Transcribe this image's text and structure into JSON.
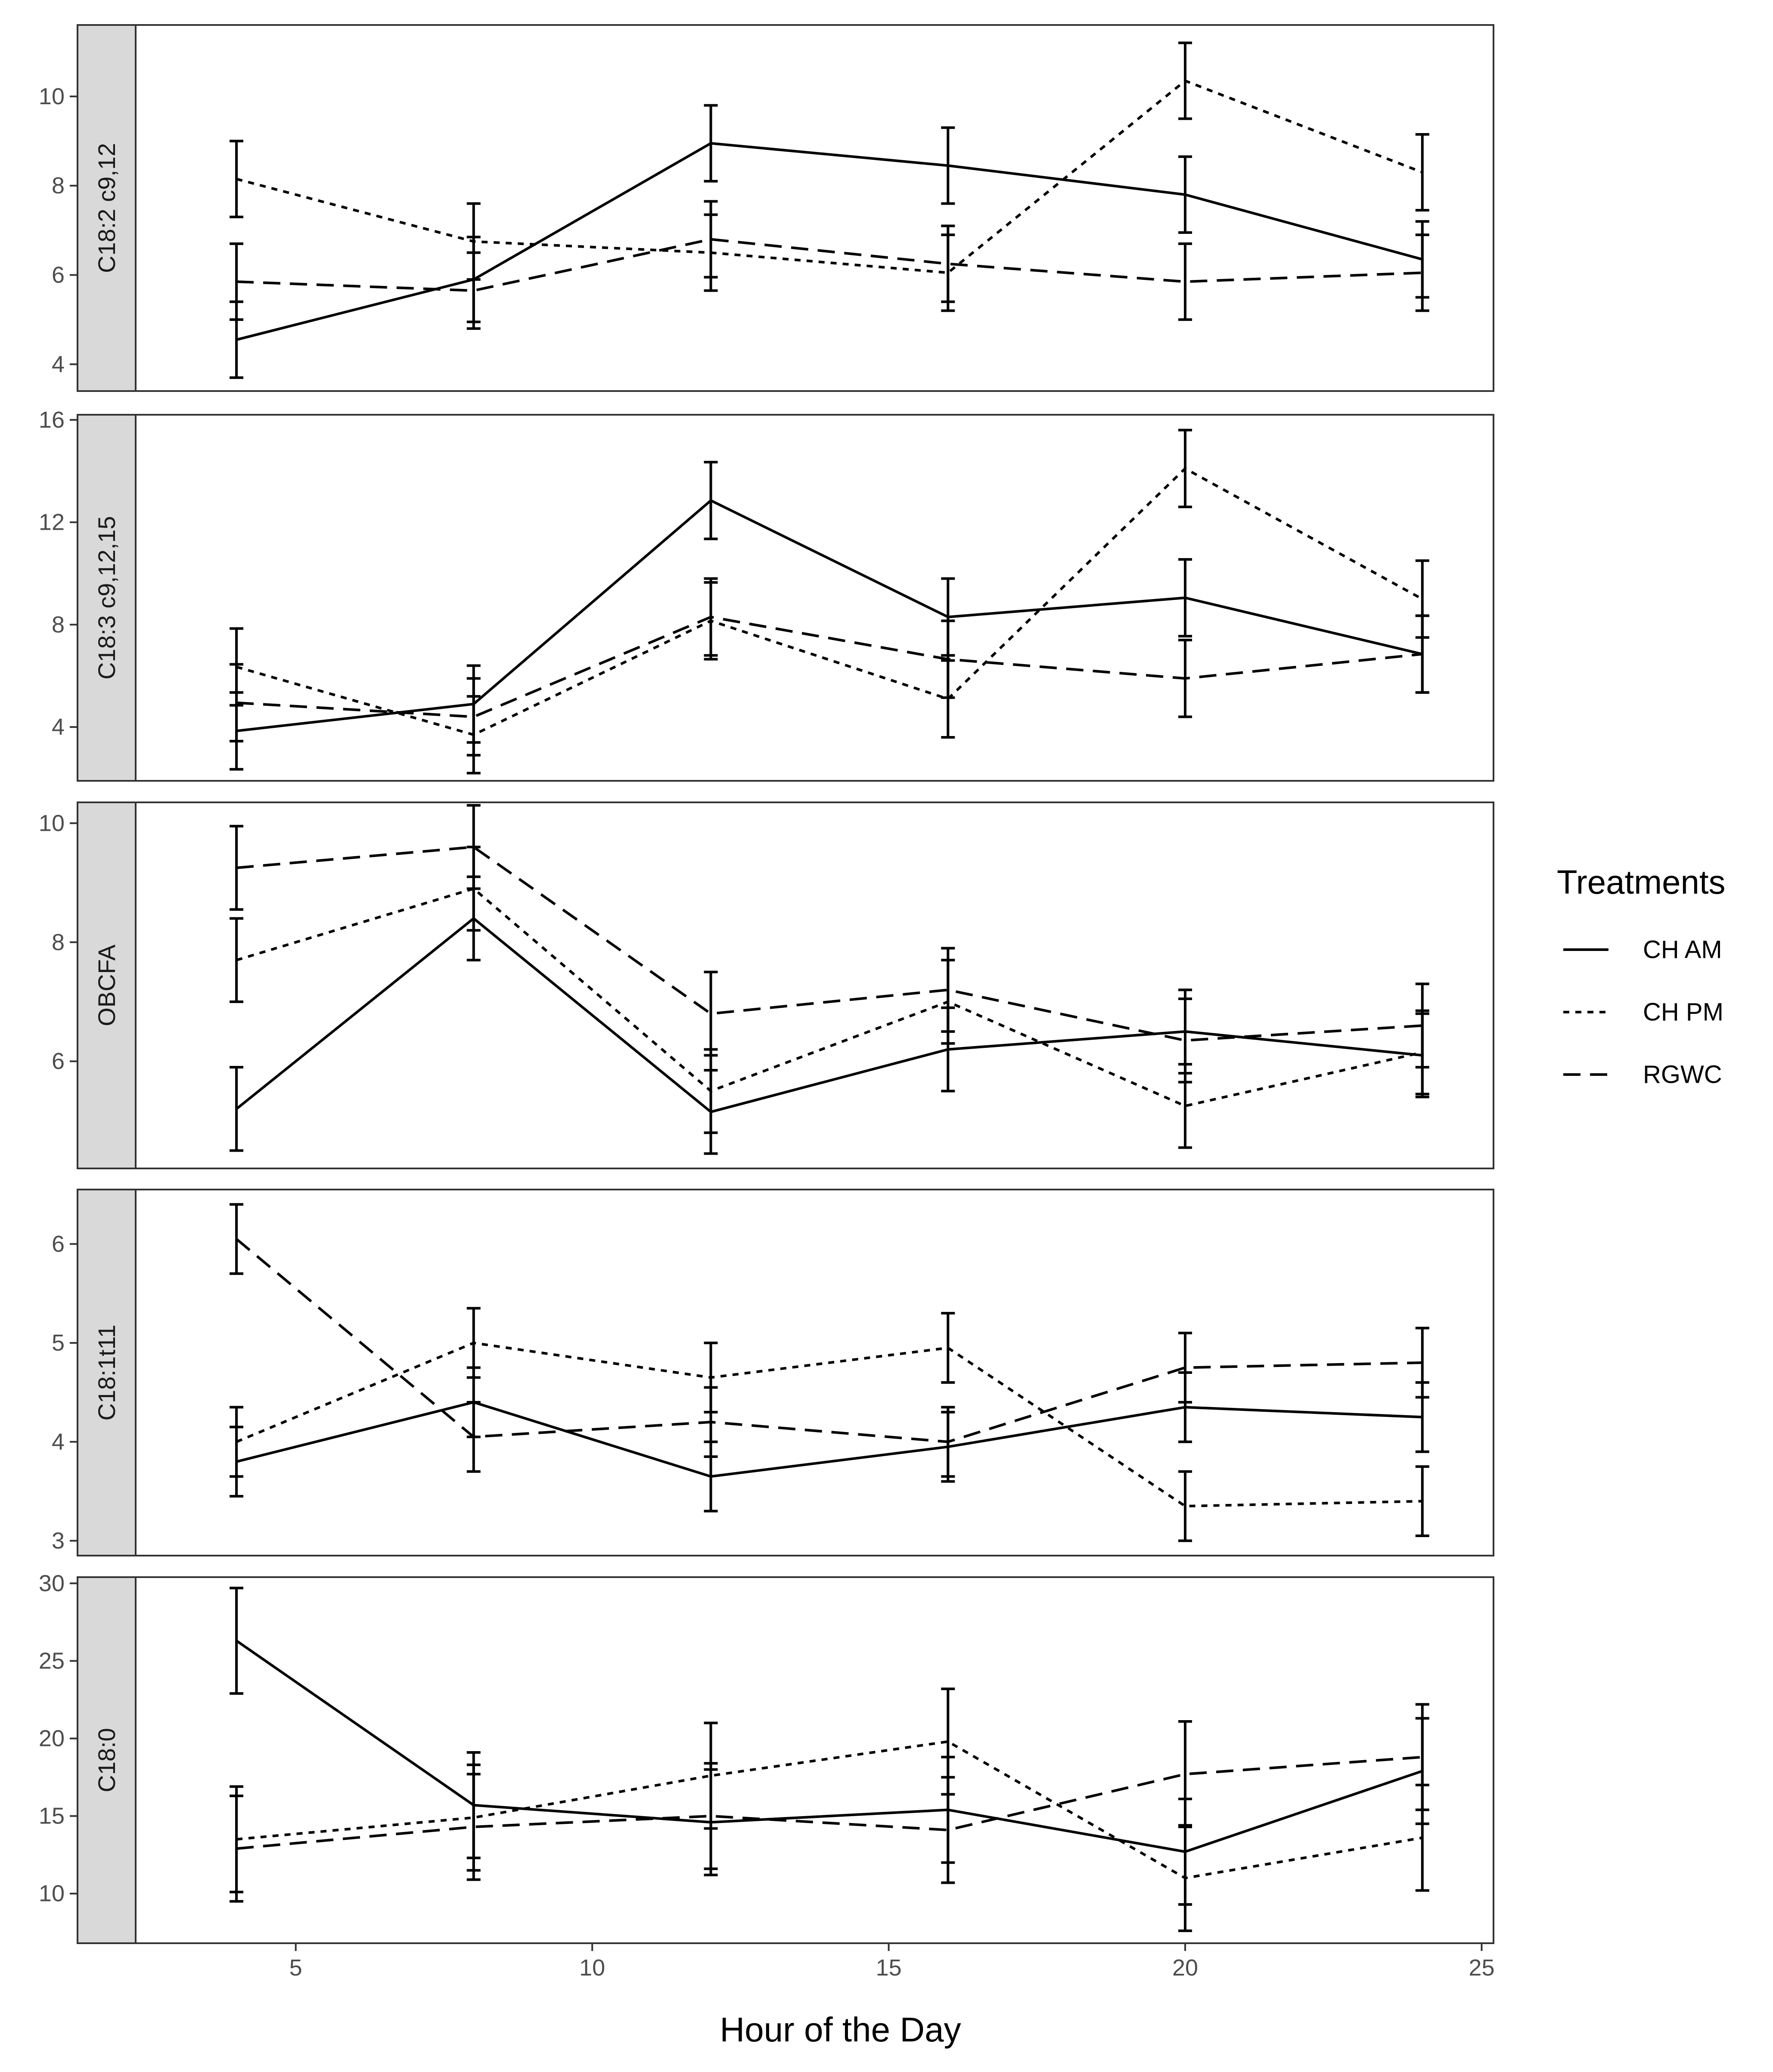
{
  "chart_data": {
    "type": "line",
    "xlabel": "Hour of the Day",
    "xlim": [
      2.3,
      25.2
    ],
    "x_ticks": [
      5,
      10,
      15,
      20,
      25
    ],
    "x": [
      4,
      8,
      12,
      16,
      20,
      24
    ],
    "legend": {
      "title": "Treatments",
      "position": "right",
      "entries": [
        {
          "name": "CH AM",
          "style": "solid"
        },
        {
          "name": "CH PM",
          "style": "dotted"
        },
        {
          "name": "RGWC",
          "style": "dashed"
        }
      ]
    },
    "panels": [
      {
        "label": "C18:2 c9,12",
        "ylim": [
          3.4,
          11.6
        ],
        "y_ticks": [
          4,
          6,
          8,
          10
        ],
        "series": [
          {
            "name": "CH AM",
            "values": [
              4.55,
              5.9,
              8.95,
              8.45,
              7.8,
              6.35
            ],
            "errors": [
              0.85,
              0.95,
              0.85,
              0.85,
              0.85,
              0.85
            ]
          },
          {
            "name": "CH PM",
            "values": [
              8.15,
              6.75,
              6.5,
              6.05,
              10.35,
              8.3
            ],
            "errors": [
              0.85,
              0.85,
              0.85,
              0.85,
              0.85,
              0.85
            ]
          },
          {
            "name": "RGWC",
            "values": [
              5.85,
              5.65,
              6.8,
              6.25,
              5.85,
              6.05
            ],
            "errors": [
              0.85,
              0.85,
              0.85,
              0.85,
              0.85,
              0.85
            ]
          }
        ]
      },
      {
        "label": "C18:3 c9,12,15",
        "ylim": [
          1.9,
          16.2
        ],
        "y_ticks": [
          4,
          8,
          12,
          16
        ],
        "series": [
          {
            "name": "CH AM",
            "values": [
              3.85,
              4.9,
              12.85,
              8.3,
              9.05,
              6.85
            ],
            "errors": [
              1.5,
              1.5,
              1.5,
              1.5,
              1.5,
              1.5
            ]
          },
          {
            "name": "CH PM",
            "values": [
              6.35,
              3.7,
              8.15,
              5.1,
              14.1,
              9.0
            ],
            "errors": [
              1.5,
              1.5,
              1.5,
              1.5,
              1.5,
              1.5
            ]
          },
          {
            "name": "RGWC",
            "values": [
              4.95,
              4.4,
              8.3,
              6.65,
              5.9,
              6.85
            ],
            "errors": [
              1.5,
              1.5,
              1.5,
              1.5,
              1.5,
              1.5
            ]
          }
        ]
      },
      {
        "label": "OBCFA",
        "ylim": [
          4.2,
          10.35
        ],
        "y_ticks": [
          6,
          8,
          10
        ],
        "series": [
          {
            "name": "CH AM",
            "values": [
              5.2,
              8.4,
              5.15,
              6.2,
              6.5,
              6.1
            ],
            "errors": [
              0.7,
              0.7,
              0.7,
              0.7,
              0.7,
              0.7
            ]
          },
          {
            "name": "CH PM",
            "values": [
              7.7,
              8.9,
              5.5,
              7.0,
              5.25,
              6.15
            ],
            "errors": [
              0.7,
              0.7,
              0.7,
              0.7,
              0.7,
              0.7
            ]
          },
          {
            "name": "RGWC",
            "values": [
              9.25,
              9.6,
              6.8,
              7.2,
              6.35,
              6.6
            ],
            "errors": [
              0.7,
              0.7,
              0.7,
              0.7,
              0.7,
              0.7
            ]
          }
        ]
      },
      {
        "label": "C18:1t11",
        "ylim": [
          2.85,
          6.55
        ],
        "y_ticks": [
          3,
          4,
          5,
          6
        ],
        "series": [
          {
            "name": "CH AM",
            "values": [
              3.8,
              4.4,
              3.65,
              3.95,
              4.35,
              4.25
            ],
            "errors": [
              0.35,
              0.35,
              0.35,
              0.35,
              0.35,
              0.35
            ]
          },
          {
            "name": "CH PM",
            "values": [
              4.0,
              5.0,
              4.65,
              4.95,
              3.35,
              3.4
            ],
            "errors": [
              0.35,
              0.35,
              0.35,
              0.35,
              0.35,
              0.35
            ]
          },
          {
            "name": "RGWC",
            "values": [
              6.05,
              4.05,
              4.2,
              4.0,
              4.75,
              4.8
            ],
            "errors": [
              0.35,
              0.35,
              0.35,
              0.35,
              0.35,
              0.35
            ]
          }
        ]
      },
      {
        "label": "C18:0",
        "ylim": [
          6.8,
          30.4
        ],
        "y_ticks": [
          10,
          15,
          20,
          25,
          30
        ],
        "series": [
          {
            "name": "CH AM",
            "values": [
              26.3,
              15.7,
              14.6,
              15.4,
              12.7,
              17.9
            ],
            "errors": [
              3.4,
              3.4,
              3.4,
              3.4,
              3.4,
              3.4
            ]
          },
          {
            "name": "CH PM",
            "values": [
              13.5,
              14.9,
              17.6,
              19.8,
              11.0,
              13.6
            ],
            "errors": [
              3.4,
              3.4,
              3.4,
              3.4,
              3.4,
              3.4
            ]
          },
          {
            "name": "RGWC",
            "values": [
              12.9,
              14.3,
              15.0,
              14.1,
              17.7,
              18.8
            ],
            "errors": [
              3.4,
              3.4,
              3.4,
              3.4,
              3.4,
              3.4
            ]
          }
        ]
      }
    ]
  }
}
